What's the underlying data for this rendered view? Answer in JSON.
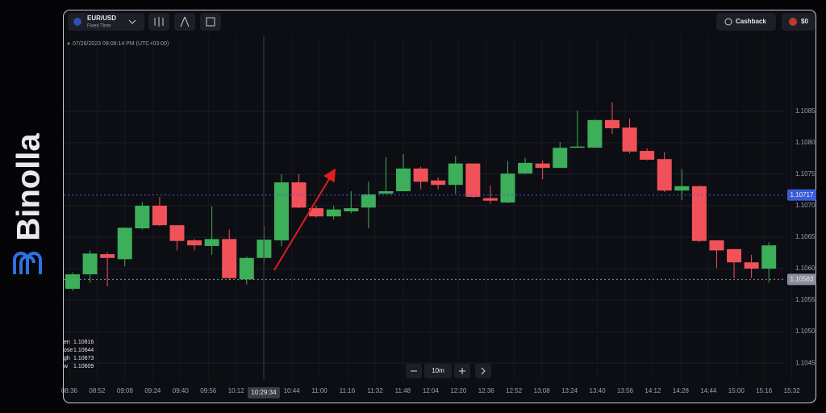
{
  "brand": "Binolla",
  "toolbar": {
    "symbol": "EUR/USD",
    "mode": "Fixed Time",
    "cashback": "Cashback",
    "balance": "$0"
  },
  "timestamp": "07/26/2023 09:08:14 PM (UTC+03:00)",
  "crosshair_time": "10:29:34",
  "timeframe": "10m",
  "ohlc_legend": [
    {
      "label": "en",
      "value": 1.10616
    },
    {
      "label": "ose",
      "value": 1.10644
    },
    {
      "label": "gh",
      "value": 1.10673
    },
    {
      "label": "w",
      "value": 1.10609
    }
  ],
  "chart_data": {
    "type": "candlestick",
    "up_color": "#3dae5a",
    "down_color": "#f1525a",
    "grid": true,
    "ylim": [
      1.10422,
      1.10969
    ],
    "yticks": [
      1.1045,
      {
        "value": 1.105,
        "label": "1.1050"
      },
      1.1055,
      {
        "value": 1.106,
        "label": "1.1060"
      },
      1.1065,
      {
        "value": 1.107,
        "label": "1.1070"
      },
      1.1075,
      {
        "value": 1.108,
        "label": "1.1080"
      },
      1.1085
    ],
    "x_labels": [
      "08:36",
      "08:52",
      "09:08",
      "09:24",
      "09:40",
      "09:56",
      "10:12",
      "10:28",
      "10:44",
      "11:00",
      "11:16",
      "11:32",
      "11:48",
      "12:04",
      "12:20",
      "12:36",
      "12:52",
      "13:08",
      "13:24",
      "13:40",
      "13:56",
      "14:12",
      "14:28",
      "14:44",
      "15:00",
      "15:16",
      "15:32"
    ],
    "open": [
      1.10568,
      1.10591,
      1.10623,
      1.10615,
      1.10664,
      1.107,
      1.10669,
      1.10645,
      1.10636,
      1.10647,
      1.10583,
      1.10617,
      1.10645,
      1.10737,
      1.10696,
      1.10683,
      1.10691,
      1.10697,
      1.10719,
      1.10723,
      1.10759,
      1.1074,
      1.10733,
      1.10767,
      1.10712,
      1.10705,
      1.10751,
      1.10767,
      1.1076,
      1.10792,
      1.10792,
      1.10836,
      1.10824,
      1.10787,
      1.10774,
      1.10724,
      1.10731,
      1.10645,
      1.10631,
      1.1061,
      1.106
    ],
    "high": [
      1.10594,
      1.10629,
      1.10626,
      1.10665,
      1.10706,
      1.10714,
      1.10669,
      1.10647,
      1.10699,
      1.10662,
      1.10619,
      1.10668,
      1.1075,
      1.1075,
      1.107,
      1.107,
      1.10723,
      1.10738,
      1.10777,
      1.10782,
      1.10762,
      1.10745,
      1.10779,
      1.10767,
      1.10732,
      1.10771,
      1.10776,
      1.10772,
      1.10801,
      1.10851,
      1.10837,
      1.10864,
      1.10838,
      1.10791,
      1.10785,
      1.10758,
      1.10732,
      1.10645,
      1.10631,
      1.10622,
      1.10642
    ],
    "low": [
      1.10565,
      1.10578,
      1.10572,
      1.10604,
      1.10662,
      1.10668,
      1.10629,
      1.10629,
      1.10622,
      1.10582,
      1.10575,
      1.1061,
      1.10636,
      1.10696,
      1.10681,
      1.10678,
      1.10688,
      1.10664,
      1.10719,
      1.10723,
      1.10726,
      1.10726,
      1.10719,
      1.10713,
      1.10703,
      1.10704,
      1.1075,
      1.10742,
      1.1076,
      1.10792,
      1.10792,
      1.10814,
      1.10783,
      1.10772,
      1.10722,
      1.10709,
      1.10642,
      1.10601,
      1.10585,
      1.10585,
      1.10578
    ],
    "close": [
      1.10591,
      1.10624,
      1.10617,
      1.10665,
      1.107,
      1.10669,
      1.10644,
      1.10637,
      1.10647,
      1.10585,
      1.10617,
      1.10646,
      1.10737,
      1.10697,
      1.10683,
      1.10694,
      1.10696,
      1.10718,
      1.10723,
      1.10759,
      1.10738,
      1.10733,
      1.10767,
      1.10714,
      1.10708,
      1.10751,
      1.10768,
      1.1076,
      1.10792,
      1.10794,
      1.10836,
      1.10823,
      1.10786,
      1.10773,
      1.10724,
      1.10731,
      1.10644,
      1.10629,
      1.1061,
      1.106,
      1.10637
    ],
    "price_lines": [
      {
        "value": 1.10717,
        "label": "1.10717",
        "color": "#3b5bdb"
      },
      {
        "value": 1.10583,
        "label": "1.10583",
        "color": "#8a8f9c"
      }
    ]
  }
}
